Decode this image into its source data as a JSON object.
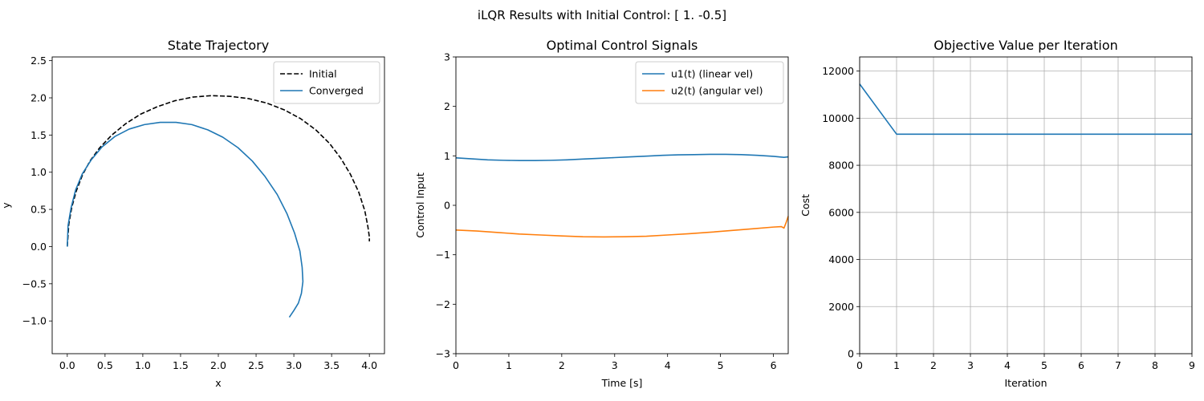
{
  "figure": {
    "suptitle": "iLQR Results with Initial Control: [ 1.  -0.5]"
  },
  "colors": {
    "blue": "#1f77b4",
    "orange": "#ff7f0e",
    "black": "#000000",
    "grid": "#b0b0b0"
  },
  "chart_data": [
    {
      "type": "line",
      "title": "State Trajectory",
      "xlabel": "x",
      "ylabel": "y",
      "xlim": [
        -0.2,
        4.2
      ],
      "ylim": [
        -1.44,
        2.55
      ],
      "xticks": [
        0.0,
        0.5,
        1.0,
        1.5,
        2.0,
        2.5,
        3.0,
        3.5,
        4.0
      ],
      "xtick_labels": [
        "0.0",
        "0.5",
        "1.0",
        "1.5",
        "2.0",
        "2.5",
        "3.0",
        "3.5",
        "4.0"
      ],
      "yticks": [
        -1.0,
        -0.5,
        0.0,
        0.5,
        1.0,
        1.5,
        2.0,
        2.5
      ],
      "ytick_labels": [
        "−1.0",
        "−0.5",
        "0.0",
        "0.5",
        "1.0",
        "1.5",
        "2.0",
        "2.5"
      ],
      "grid": false,
      "legend": "top-right",
      "series": [
        {
          "name": "Initial",
          "color": "#000000",
          "style": "dashed",
          "x": [
            0.0,
            0.02,
            0.06,
            0.12,
            0.2,
            0.3,
            0.43,
            0.59,
            0.77,
            0.97,
            1.19,
            1.42,
            1.66,
            1.91,
            2.16,
            2.4,
            2.64,
            2.87,
            3.09,
            3.29,
            3.47,
            3.62,
            3.75,
            3.86,
            3.94,
            3.98,
            4.0,
            4.0
          ],
          "y": [
            0.0,
            0.3,
            0.53,
            0.75,
            0.96,
            1.15,
            1.33,
            1.5,
            1.65,
            1.78,
            1.88,
            1.96,
            2.01,
            2.03,
            2.02,
            1.99,
            1.93,
            1.84,
            1.72,
            1.57,
            1.39,
            1.19,
            0.97,
            0.73,
            0.48,
            0.27,
            0.13,
            0.07
          ]
        },
        {
          "name": "Converged",
          "color": "#1f77b4",
          "style": "solid",
          "x": [
            0.0,
            0.01,
            0.05,
            0.11,
            0.2,
            0.32,
            0.46,
            0.63,
            0.82,
            1.02,
            1.23,
            1.44,
            1.65,
            1.86,
            2.06,
            2.26,
            2.45,
            2.62,
            2.78,
            2.91,
            3.01,
            3.08,
            3.11,
            3.12,
            3.1,
            3.06,
            3.0,
            2.94
          ],
          "y": [
            0.0,
            0.28,
            0.52,
            0.76,
            0.98,
            1.17,
            1.34,
            1.48,
            1.58,
            1.64,
            1.67,
            1.67,
            1.64,
            1.57,
            1.47,
            1.33,
            1.15,
            0.94,
            0.7,
            0.44,
            0.18,
            -0.06,
            -0.28,
            -0.47,
            -0.63,
            -0.76,
            -0.86,
            -0.95
          ]
        }
      ]
    },
    {
      "type": "line",
      "title": "Optimal Control Signals",
      "xlabel": "Time [s]",
      "ylabel": "Control Input",
      "xlim": [
        0,
        6.28
      ],
      "ylim": [
        -3,
        3
      ],
      "xticks": [
        0,
        1,
        2,
        3,
        4,
        5,
        6
      ],
      "xtick_labels": [
        "0",
        "1",
        "2",
        "3",
        "4",
        "5",
        "6"
      ],
      "yticks": [
        -3,
        -2,
        -1,
        0,
        1,
        2,
        3
      ],
      "ytick_labels": [
        "−3",
        "−2",
        "−1",
        "0",
        "1",
        "2",
        "3"
      ],
      "grid": false,
      "legend": "top-right",
      "series": [
        {
          "name": "u1(t) (linear vel)",
          "color": "#1f77b4",
          "style": "solid",
          "x": [
            0,
            0.3,
            0.6,
            0.9,
            1.2,
            1.5,
            1.8,
            2.1,
            2.4,
            2.7,
            3.0,
            3.3,
            3.6,
            3.9,
            4.2,
            4.5,
            4.8,
            5.1,
            5.4,
            5.7,
            6.0,
            6.2,
            6.28
          ],
          "y": [
            0.96,
            0.94,
            0.92,
            0.91,
            0.905,
            0.905,
            0.91,
            0.92,
            0.935,
            0.95,
            0.965,
            0.98,
            0.995,
            1.01,
            1.02,
            1.025,
            1.03,
            1.03,
            1.025,
            1.01,
            0.99,
            0.97,
            0.98
          ]
        },
        {
          "name": "u2(t) (angular vel)",
          "color": "#ff7f0e",
          "style": "solid",
          "x": [
            0,
            0.4,
            0.8,
            1.2,
            1.6,
            2.0,
            2.4,
            2.8,
            3.2,
            3.6,
            4.0,
            4.4,
            4.8,
            5.2,
            5.6,
            6.0,
            6.15,
            6.2,
            6.24,
            6.28
          ],
          "y": [
            -0.5,
            -0.52,
            -0.55,
            -0.58,
            -0.6,
            -0.62,
            -0.635,
            -0.64,
            -0.635,
            -0.625,
            -0.6,
            -0.575,
            -0.545,
            -0.51,
            -0.475,
            -0.44,
            -0.43,
            -0.46,
            -0.35,
            -0.22
          ]
        }
      ]
    },
    {
      "type": "line",
      "title": "Objective Value per Iteration",
      "xlabel": "Iteration",
      "ylabel": "Cost",
      "xlim": [
        0,
        9
      ],
      "ylim": [
        0,
        12600
      ],
      "xticks": [
        0,
        1,
        2,
        3,
        4,
        5,
        6,
        7,
        8,
        9
      ],
      "xtick_labels": [
        "0",
        "1",
        "2",
        "3",
        "4",
        "5",
        "6",
        "7",
        "8",
        "9"
      ],
      "yticks": [
        0,
        2000,
        4000,
        6000,
        8000,
        10000,
        12000
      ],
      "ytick_labels": [
        "0",
        "2000",
        "4000",
        "6000",
        "8000",
        "10000",
        "12000"
      ],
      "grid": true,
      "series": [
        {
          "color": "#1f77b4",
          "style": "solid",
          "x": [
            0,
            1,
            2,
            3,
            4,
            5,
            6,
            7,
            8,
            9
          ],
          "y": [
            11450,
            9320,
            9320,
            9320,
            9320,
            9320,
            9320,
            9320,
            9320,
            9320
          ]
        }
      ]
    }
  ]
}
